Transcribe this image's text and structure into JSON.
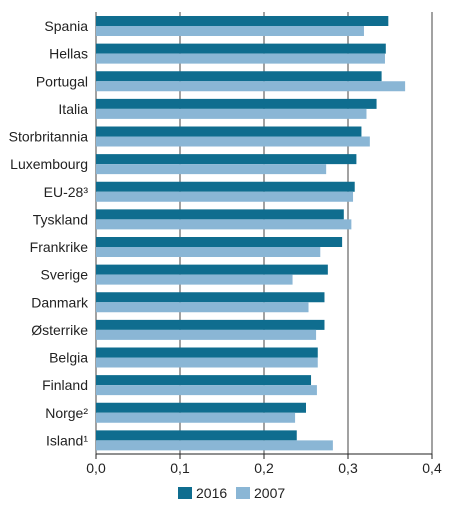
{
  "chart_data": {
    "type": "bar",
    "orientation": "horizontal",
    "title": "",
    "xlabel": "",
    "ylabel": "",
    "categories": [
      "Spania",
      "Hellas",
      "Portugal",
      "Italia",
      "Storbritannia",
      "Luxembourg",
      "EU-28³",
      "Tyskland",
      "Frankrike",
      "Sverige",
      "Danmark",
      "Østerrike",
      "Belgia",
      "Finland",
      "Norge²",
      "Island¹"
    ],
    "series": [
      {
        "name": "2016",
        "color": "#0f6d8f",
        "values": [
          0.348,
          0.345,
          0.34,
          0.334,
          0.316,
          0.31,
          0.308,
          0.295,
          0.293,
          0.276,
          0.272,
          0.272,
          0.264,
          0.256,
          0.25,
          0.239
        ]
      },
      {
        "name": "2007",
        "color": "#8ab6d5",
        "values": [
          0.319,
          0.344,
          0.368,
          0.322,
          0.326,
          0.274,
          0.306,
          0.304,
          0.267,
          0.234,
          0.253,
          0.262,
          0.264,
          0.263,
          0.237,
          0.282
        ]
      }
    ],
    "xlim": [
      0,
      0.4
    ],
    "xticks": [
      "0,0",
      "0,1",
      "0,2",
      "0,3",
      "0,4"
    ],
    "xtick_values": [
      0,
      0.1,
      0.2,
      0.3,
      0.4
    ],
    "grid": "vertical",
    "legend_position": "bottom"
  }
}
